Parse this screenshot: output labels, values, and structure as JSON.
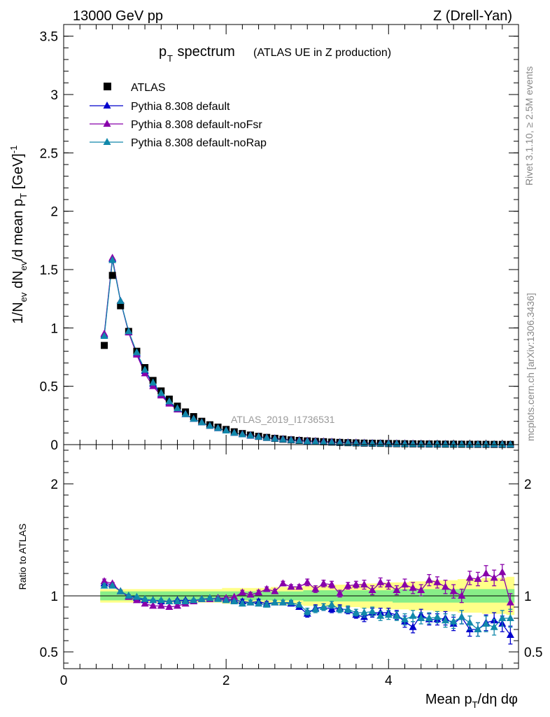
{
  "header": {
    "left": "13000 GeV pp",
    "right": "Z (Drell-Yan)"
  },
  "side_labels": {
    "rivet": "Rivet 3.1.10, ≥ 2.5M events",
    "mcplots": "mcplots.cern.ch [arXiv:1306.3436]"
  },
  "title": {
    "main": "p",
    "main_sub": "T",
    "main_rest": " spectrum",
    "small": "(ATLAS UE in Z production)"
  },
  "analysis_label": "ATLAS_2019_I1736531",
  "axes": {
    "ylabel_top": "1/N_ev dN_ev/d mean p_T [GeV]^-1",
    "ylabel_ratio": "Ratio to ATLAS",
    "xlabel": "Mean p_T/dη dφ"
  },
  "legend": {
    "entries": [
      "ATLAS",
      "Pythia 8.308 default",
      "Pythia 8.308 default-noFsr",
      "Pythia 8.308 default-noRap"
    ]
  },
  "colors": {
    "data": "#000000",
    "default": "#0000cc",
    "noFsr": "#8800aa",
    "noRap": "#1188aa",
    "band_outer": "#ffff88",
    "band_inner": "#88ee88"
  },
  "chart_data": [
    {
      "type": "scatter",
      "panel": "main",
      "xlim": [
        0,
        5.6
      ],
      "ylim": [
        0,
        3.6
      ],
      "y_ticks": [
        "0",
        "0.5",
        "1",
        "1.5",
        "2",
        "2.5",
        "3",
        "3.5"
      ],
      "x": [
        0.5,
        0.6,
        0.7,
        0.8,
        0.9,
        1.0,
        1.1,
        1.2,
        1.3,
        1.4,
        1.5,
        1.6,
        1.7,
        1.8,
        1.9,
        2.0,
        2.1,
        2.2,
        2.3,
        2.4,
        2.5,
        2.6,
        2.7,
        2.8,
        2.9,
        3.0,
        3.1,
        3.2,
        3.3,
        3.4,
        3.5,
        3.6,
        3.7,
        3.8,
        3.9,
        4.0,
        4.1,
        4.2,
        4.3,
        4.4,
        4.5,
        4.6,
        4.7,
        4.8,
        4.9,
        5.0,
        5.1,
        5.2,
        5.3,
        5.4,
        5.5
      ],
      "series": [
        {
          "name": "ATLAS",
          "values": [
            0.85,
            1.45,
            1.19,
            0.97,
            0.8,
            0.66,
            0.55,
            0.46,
            0.39,
            0.33,
            0.28,
            0.24,
            0.2,
            0.17,
            0.15,
            0.13,
            0.11,
            0.095,
            0.082,
            0.071,
            0.062,
            0.054,
            0.047,
            0.041,
            0.036,
            0.032,
            0.028,
            0.025,
            0.022,
            0.019,
            0.017,
            0.015,
            0.013,
            0.012,
            0.011,
            0.0095,
            0.0085,
            0.0075,
            0.0068,
            0.006,
            0.0054,
            0.0048,
            0.0043,
            0.0039,
            0.0035,
            0.0031,
            0.0028,
            0.0025,
            0.0022,
            0.002,
            0.0018
          ]
        },
        {
          "name": "Pythia 8.308 default",
          "values": [
            0.94,
            1.59,
            1.23,
            0.97,
            0.78,
            0.63,
            0.52,
            0.43,
            0.36,
            0.31,
            0.26,
            0.22,
            0.19,
            0.16,
            0.14,
            0.12,
            0.1,
            0.088,
            0.076,
            0.066,
            0.057,
            0.05,
            0.044,
            0.038,
            0.033,
            0.028,
            0.025,
            0.022,
            0.019,
            0.017,
            0.015,
            0.013,
            0.011,
            0.01,
            0.009,
            0.008,
            0.007,
            0.006,
            0.005,
            0.005,
            0.004,
            0.004,
            0.003,
            0.003,
            0.003,
            0.002,
            0.002,
            0.002,
            0.002,
            0.001,
            0.001
          ]
        },
        {
          "name": "Pythia 8.308 default-noFsr",
          "values": [
            0.95,
            1.6,
            1.23,
            0.96,
            0.77,
            0.61,
            0.5,
            0.42,
            0.35,
            0.3,
            0.26,
            0.22,
            0.19,
            0.16,
            0.14,
            0.12,
            0.1,
            0.09,
            0.08,
            0.069,
            0.06,
            0.054,
            0.048,
            0.042,
            0.038,
            0.033,
            0.03,
            0.027,
            0.024,
            0.021,
            0.019,
            0.017,
            0.015,
            0.013,
            0.012,
            0.011,
            0.01,
            0.009,
            0.008,
            0.007,
            0.006,
            0.005,
            0.005,
            0.004,
            0.004,
            0.003,
            0.003,
            0.003,
            0.002,
            0.002,
            0.002
          ]
        },
        {
          "name": "Pythia 8.308 default-noRap",
          "values": [
            0.93,
            1.58,
            1.23,
            0.97,
            0.79,
            0.64,
            0.53,
            0.44,
            0.37,
            0.31,
            0.26,
            0.22,
            0.19,
            0.16,
            0.14,
            0.12,
            0.1,
            0.088,
            0.077,
            0.067,
            0.058,
            0.05,
            0.044,
            0.038,
            0.033,
            0.028,
            0.025,
            0.022,
            0.019,
            0.017,
            0.015,
            0.013,
            0.011,
            0.01,
            0.009,
            0.008,
            0.007,
            0.006,
            0.005,
            0.005,
            0.004,
            0.004,
            0.003,
            0.003,
            0.003,
            0.002,
            0.002,
            0.002,
            0.002,
            0.001,
            0.001
          ]
        }
      ]
    },
    {
      "type": "scatter",
      "panel": "ratio",
      "xlim": [
        0,
        5.6
      ],
      "ylim": [
        0.35,
        2.35
      ],
      "y_ticks": [
        "0.5",
        "1",
        "2"
      ],
      "x_ticks": [
        "0",
        "2",
        "4"
      ],
      "x": [
        0.5,
        0.6,
        0.7,
        0.8,
        0.9,
        1.0,
        1.1,
        1.2,
        1.3,
        1.4,
        1.5,
        1.6,
        1.7,
        1.8,
        1.9,
        2.0,
        2.1,
        2.2,
        2.3,
        2.4,
        2.5,
        2.6,
        2.7,
        2.8,
        2.9,
        3.0,
        3.1,
        3.2,
        3.3,
        3.4,
        3.5,
        3.6,
        3.7,
        3.8,
        3.9,
        4.0,
        4.1,
        4.2,
        4.3,
        4.4,
        4.5,
        4.6,
        4.7,
        4.8,
        4.9,
        5.0,
        5.1,
        5.2,
        5.3,
        5.4,
        5.5
      ],
      "band_inner": [
        0.04,
        0.04,
        0.04,
        0.04,
        0.04,
        0.04,
        0.04,
        0.04,
        0.04,
        0.04,
        0.04,
        0.04,
        0.04,
        0.04,
        0.04,
        0.04,
        0.04,
        0.04,
        0.04,
        0.04,
        0.04,
        0.04,
        0.04,
        0.04,
        0.04,
        0.05,
        0.05,
        0.05,
        0.05,
        0.05,
        0.05,
        0.05,
        0.05,
        0.05,
        0.05,
        0.05,
        0.06,
        0.06,
        0.06,
        0.06,
        0.06,
        0.06,
        0.06,
        0.06,
        0.06,
        0.06,
        0.06,
        0.06,
        0.06,
        0.06,
        0.06
      ],
      "band_outer": [
        0.06,
        0.06,
        0.06,
        0.06,
        0.06,
        0.06,
        0.06,
        0.06,
        0.06,
        0.06,
        0.06,
        0.06,
        0.06,
        0.06,
        0.06,
        0.07,
        0.07,
        0.07,
        0.07,
        0.07,
        0.07,
        0.08,
        0.08,
        0.08,
        0.08,
        0.09,
        0.09,
        0.09,
        0.1,
        0.1,
        0.1,
        0.1,
        0.11,
        0.11,
        0.11,
        0.12,
        0.12,
        0.12,
        0.13,
        0.13,
        0.13,
        0.14,
        0.14,
        0.14,
        0.15,
        0.15,
        0.15,
        0.16,
        0.16,
        0.16,
        0.17
      ],
      "series": [
        {
          "name": "Pythia 8.308 default",
          "values": [
            1.11,
            1.1,
            1.04,
            1.0,
            0.98,
            0.96,
            0.96,
            0.95,
            0.95,
            0.96,
            0.96,
            0.96,
            0.97,
            0.97,
            0.98,
            0.97,
            0.96,
            0.95,
            0.94,
            0.95,
            0.93,
            0.94,
            0.94,
            0.93,
            0.9,
            0.84,
            0.89,
            0.9,
            0.88,
            0.89,
            0.87,
            0.83,
            0.81,
            0.85,
            0.85,
            0.85,
            0.83,
            0.77,
            0.72,
            0.83,
            0.79,
            0.79,
            0.8,
            0.75,
            0.81,
            0.7,
            0.7,
            0.76,
            0.78,
            0.75,
            0.65
          ],
          "errors": [
            0.02,
            0.01,
            0.01,
            0.01,
            0.01,
            0.01,
            0.01,
            0.01,
            0.01,
            0.01,
            0.01,
            0.01,
            0.01,
            0.01,
            0.01,
            0.01,
            0.01,
            0.02,
            0.02,
            0.02,
            0.02,
            0.02,
            0.02,
            0.02,
            0.02,
            0.03,
            0.03,
            0.03,
            0.03,
            0.03,
            0.03,
            0.03,
            0.04,
            0.04,
            0.04,
            0.04,
            0.04,
            0.05,
            0.05,
            0.05,
            0.05,
            0.05,
            0.06,
            0.06,
            0.06,
            0.06,
            0.06,
            0.07,
            0.07,
            0.07,
            0.08
          ]
        },
        {
          "name": "Pythia 8.308 default-noFsr",
          "values": [
            1.13,
            1.11,
            1.04,
            0.99,
            0.96,
            0.93,
            0.91,
            0.91,
            0.9,
            0.91,
            0.93,
            0.95,
            0.97,
            0.97,
            0.98,
            0.98,
            0.99,
            1.03,
            1.01,
            1.03,
            1.06,
            1.04,
            1.11,
            1.08,
            1.08,
            1.12,
            1.06,
            1.11,
            1.1,
            1.02,
            1.09,
            1.1,
            1.1,
            1.05,
            1.12,
            1.1,
            1.05,
            1.1,
            1.07,
            1.05,
            1.14,
            1.12,
            1.08,
            1.04,
            1.0,
            1.16,
            1.15,
            1.2,
            1.16,
            1.21,
            0.94
          ],
          "errors": [
            0.02,
            0.01,
            0.01,
            0.01,
            0.01,
            0.01,
            0.01,
            0.01,
            0.01,
            0.01,
            0.01,
            0.01,
            0.01,
            0.01,
            0.01,
            0.01,
            0.01,
            0.02,
            0.02,
            0.02,
            0.02,
            0.02,
            0.02,
            0.02,
            0.02,
            0.03,
            0.03,
            0.03,
            0.03,
            0.03,
            0.03,
            0.03,
            0.04,
            0.04,
            0.04,
            0.04,
            0.04,
            0.05,
            0.05,
            0.05,
            0.05,
            0.05,
            0.06,
            0.06,
            0.06,
            0.06,
            0.06,
            0.07,
            0.07,
            0.07,
            0.08
          ]
        },
        {
          "name": "Pythia 8.308 default-noRap",
          "values": [
            1.09,
            1.09,
            1.04,
            1.0,
            0.99,
            0.97,
            0.96,
            0.96,
            0.95,
            0.95,
            0.95,
            0.96,
            0.97,
            0.98,
            0.97,
            0.96,
            0.95,
            0.93,
            0.94,
            0.93,
            0.92,
            0.94,
            0.94,
            0.94,
            0.92,
            0.86,
            0.88,
            0.9,
            0.92,
            0.88,
            0.88,
            0.85,
            0.85,
            0.86,
            0.82,
            0.83,
            0.82,
            0.79,
            0.82,
            0.8,
            0.8,
            0.81,
            0.78,
            0.77,
            0.81,
            0.76,
            0.7,
            0.75,
            0.72,
            0.8,
            0.8
          ],
          "errors": [
            0.02,
            0.01,
            0.01,
            0.01,
            0.01,
            0.01,
            0.01,
            0.01,
            0.01,
            0.01,
            0.01,
            0.01,
            0.01,
            0.01,
            0.01,
            0.01,
            0.01,
            0.02,
            0.02,
            0.02,
            0.02,
            0.02,
            0.02,
            0.02,
            0.02,
            0.03,
            0.03,
            0.03,
            0.03,
            0.03,
            0.03,
            0.03,
            0.04,
            0.04,
            0.04,
            0.04,
            0.04,
            0.05,
            0.05,
            0.05,
            0.05,
            0.05,
            0.06,
            0.06,
            0.06,
            0.06,
            0.06,
            0.07,
            0.07,
            0.07,
            0.08
          ]
        }
      ]
    }
  ]
}
